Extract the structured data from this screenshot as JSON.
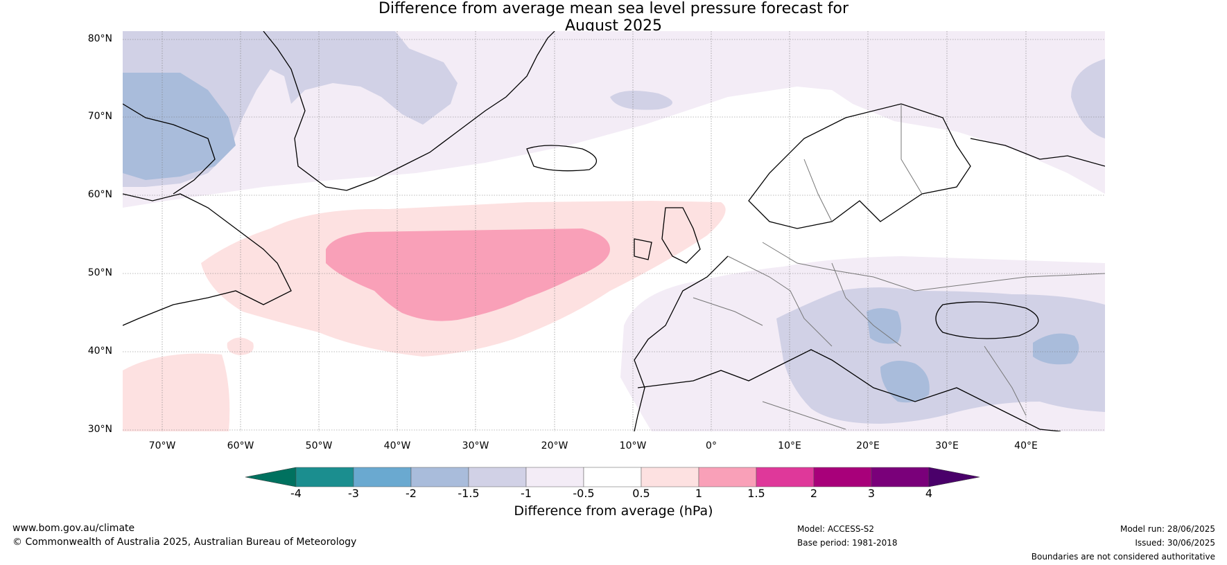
{
  "title_line1": "Difference from average mean sea level pressure forecast for",
  "title_line2": "August 2025",
  "lat_labels": [
    "80°N",
    "70°N",
    "60°N",
    "50°N",
    "40°N",
    "30°N"
  ],
  "lon_labels": [
    "70°W",
    "60°W",
    "50°W",
    "40°W",
    "30°W",
    "20°W",
    "10°W",
    "0°",
    "10°E",
    "20°E",
    "30°E",
    "40°E"
  ],
  "colorbar": {
    "label": "Difference from average (hPa)",
    "ticks": [
      "-4",
      "-3",
      "-2",
      "-1.5",
      "-1",
      "-0.5",
      "0.5",
      "1",
      "1.5",
      "2",
      "3",
      "4"
    ],
    "colors": [
      "#1b8e8f",
      "#6aa9d0",
      "#a9bcdb",
      "#d1d1e6",
      "#f3ecf6",
      "#ffffff",
      "#fde1e1",
      "#f9a0b8",
      "#df389a",
      "#a8007a",
      "#7a007a"
    ],
    "under_color": "#00715f",
    "over_color": "#4a006a"
  },
  "footer": {
    "website": "www.bom.gov.au/climate",
    "copyright": "© Commonwealth of Australia 2025, Australian Bureau of Meteorology",
    "model": "Model: ACCESS-S2",
    "base_period": "Base period: 1981-2018",
    "model_run": "Model run: 28/06/2025",
    "issued": "Issued: 30/06/2025",
    "disclaimer": "Boundaries are not considered authoritative"
  }
}
